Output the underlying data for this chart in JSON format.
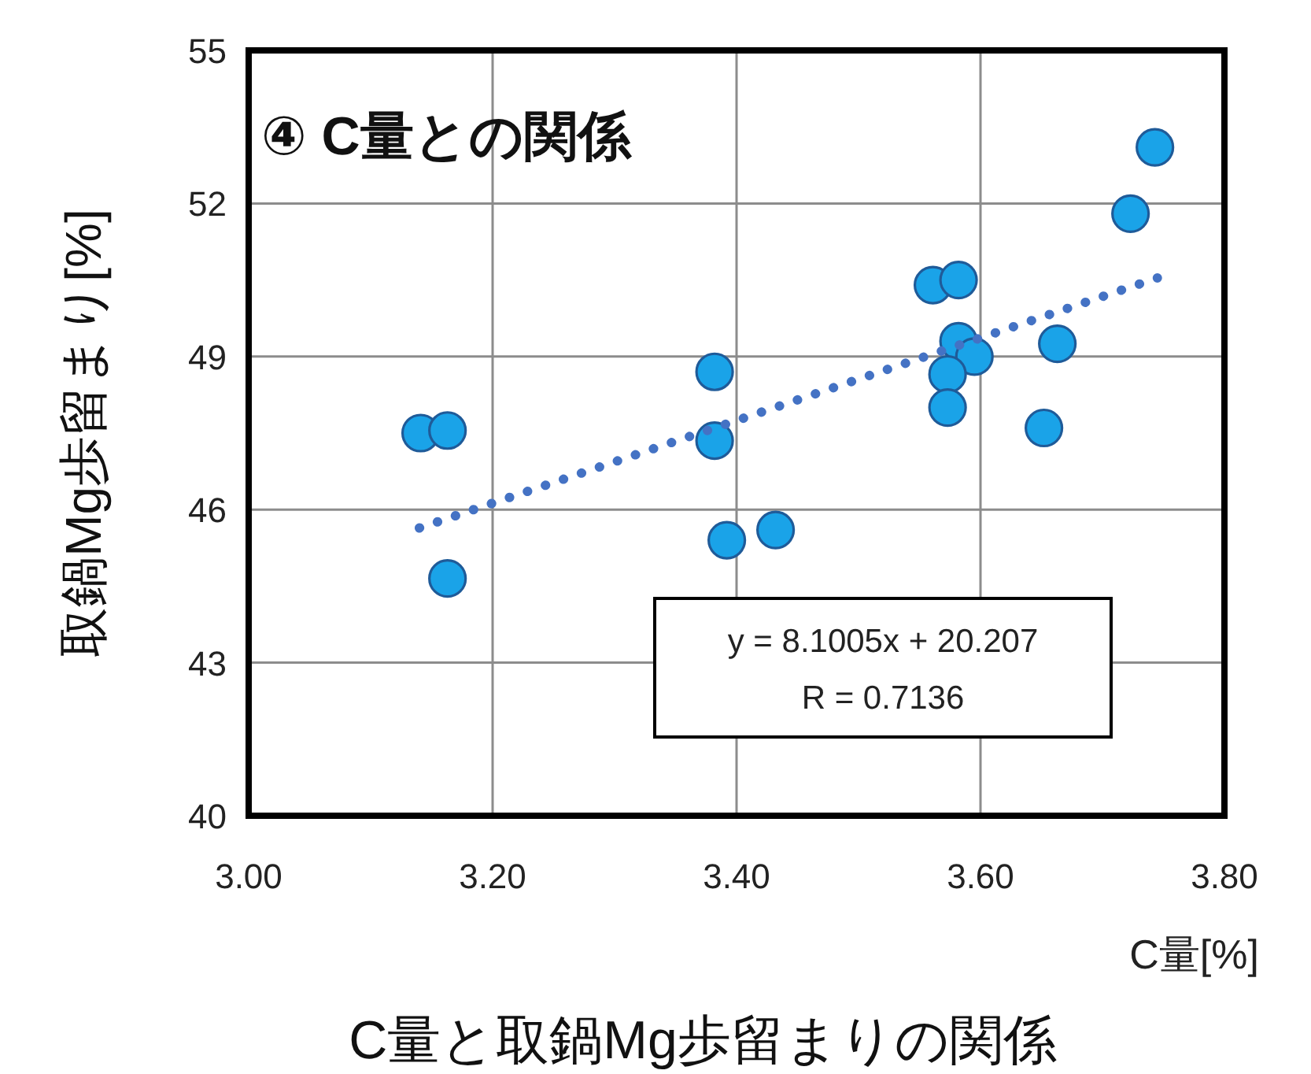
{
  "chart_data": {
    "type": "scatter",
    "title": "④ C量との関係",
    "xlabel": "C量[%]",
    "ylabel": "取鍋Mg歩留まり[%]",
    "xlim": [
      3.0,
      3.8
    ],
    "xticks": [
      {
        "value": 3.0,
        "label": "3.00"
      },
      {
        "value": 3.2,
        "label": "3.20"
      },
      {
        "value": 3.4,
        "label": "3.40"
      },
      {
        "value": 3.6,
        "label": "3.60"
      },
      {
        "value": 3.8,
        "label": "3.80"
      }
    ],
    "ylim": [
      40,
      55
    ],
    "yticks": [
      40,
      43,
      46,
      49,
      52,
      55
    ],
    "grid": true,
    "marker": "circle",
    "series": [
      {
        "color": "#1aa3e8",
        "x": [
          3.141,
          3.163,
          3.163,
          3.382,
          3.382,
          3.392,
          3.432,
          3.561,
          3.582,
          3.582,
          3.595,
          3.581,
          3.573,
          3.573,
          3.663,
          3.652,
          3.723,
          3.743
        ],
        "values": [
          47.5,
          47.55,
          44.65,
          48.7,
          47.35,
          45.4,
          45.6,
          50.4,
          50.5,
          49.3,
          49.0,
          null,
          48.65,
          48.0,
          49.25,
          47.6,
          51.8,
          53.1
        ]
      },
      {
        "type": "line",
        "marker": "none",
        "color": "#4472c4",
        "line_style": "dotted",
        "x": [
          3.14,
          3.745
        ],
        "values": [
          45.64,
          50.54
        ]
      }
    ],
    "annotations": [
      "y = 8.1005x + 20.207",
      "R = 0.7136",
      "C量と取鍋Mg歩留まりの関係"
    ]
  }
}
